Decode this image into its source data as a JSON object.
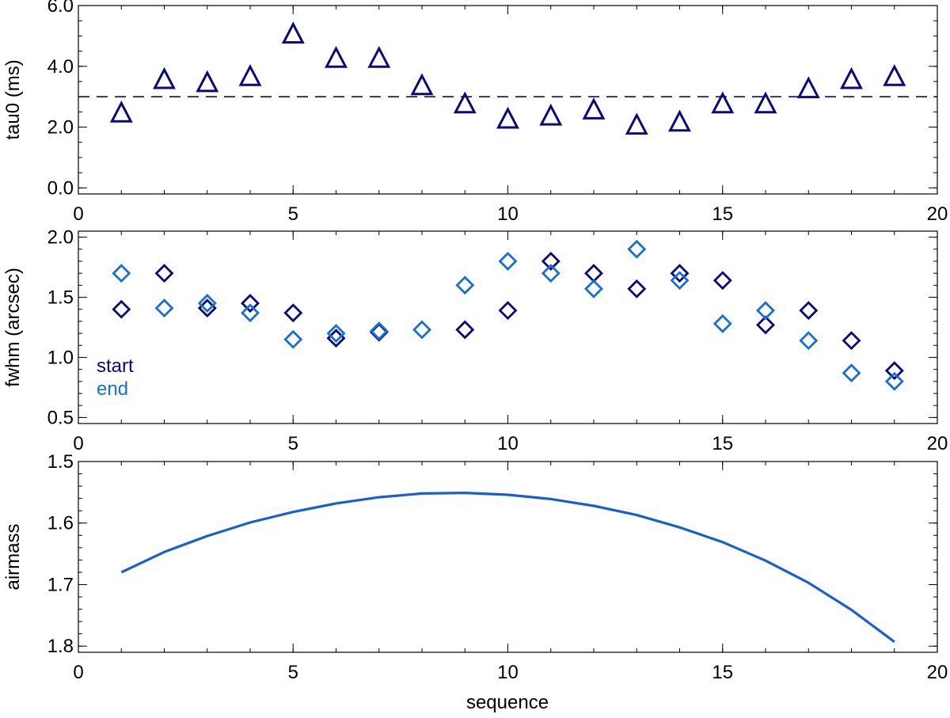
{
  "chart_data": [
    {
      "type": "scatter",
      "panel": "top",
      "xlabel": "",
      "ylabel": "tau0 (ms)",
      "xlim": [
        0,
        20
      ],
      "ylim": [
        -0.2,
        6.0
      ],
      "xticks": [
        0,
        5,
        10,
        15,
        20
      ],
      "xtick_labels": [
        "0",
        "5",
        "10",
        "15",
        "20"
      ],
      "yticks": [
        0,
        2,
        4,
        6
      ],
      "ytick_labels": [
        "0.0",
        "2.0",
        "4.0",
        "6.0"
      ],
      "x_minor_step": 1,
      "y_minor_step": 0.5,
      "marker": "triangle",
      "series": [
        {
          "color": "#0a0a7a",
          "x": [
            1,
            2,
            3,
            4,
            5,
            6,
            7,
            8,
            9,
            10,
            11,
            12,
            13,
            14,
            15,
            16,
            17,
            18,
            19
          ],
          "y": [
            2.45,
            3.55,
            3.45,
            3.65,
            5.05,
            4.25,
            4.25,
            3.35,
            2.75,
            2.25,
            2.35,
            2.55,
            2.05,
            2.15,
            2.75,
            2.75,
            3.25,
            3.55,
            3.65
          ]
        }
      ],
      "hline": {
        "y": 3.0,
        "style": "dashed",
        "color": "#0a0a7a"
      }
    },
    {
      "type": "scatter",
      "panel": "middle",
      "xlabel": "",
      "ylabel": "fwhm (arcsec)",
      "xlim": [
        0,
        20
      ],
      "ylim": [
        0.45,
        2.05
      ],
      "xticks": [
        0,
        5,
        10,
        15,
        20
      ],
      "xtick_labels": [
        "0",
        "5",
        "10",
        "15",
        "20"
      ],
      "yticks": [
        0.5,
        1.0,
        1.5,
        2.0
      ],
      "ytick_labels": [
        "0.5",
        "1.0",
        "1.5",
        "2.0"
      ],
      "x_minor_step": 1,
      "y_minor_step": 0.1,
      "marker": "diamond",
      "legend_position": "left",
      "series": [
        {
          "name": "start",
          "color": "#0a0a7a",
          "x": [
            1,
            2,
            3,
            4,
            5,
            6,
            7,
            9,
            10,
            11,
            12,
            13,
            14,
            15,
            16,
            17,
            18,
            19
          ],
          "y": [
            1.4,
            1.7,
            1.41,
            1.45,
            1.37,
            1.16,
            1.21,
            1.23,
            1.39,
            1.8,
            1.7,
            1.57,
            1.7,
            1.64,
            1.27,
            1.39,
            1.14,
            0.89
          ]
        },
        {
          "name": "end",
          "color": "#1a6fd4",
          "x": [
            1,
            2,
            3,
            4,
            5,
            6,
            7,
            8,
            9,
            10,
            11,
            12,
            13,
            14,
            15,
            16,
            17,
            18,
            19
          ],
          "y": [
            1.7,
            1.41,
            1.45,
            1.37,
            1.15,
            1.2,
            1.22,
            1.23,
            1.6,
            1.8,
            1.7,
            1.57,
            1.9,
            1.64,
            1.28,
            1.39,
            1.14,
            0.87,
            0.8
          ]
        }
      ]
    },
    {
      "type": "line",
      "panel": "bottom",
      "xlabel": "sequence",
      "ylabel": "airmass",
      "xlim": [
        0,
        20
      ],
      "ylim": [
        1.5,
        1.81
      ],
      "y_inverted": true,
      "xticks": [
        0,
        5,
        10,
        15,
        20
      ],
      "xtick_labels": [
        "0",
        "5",
        "10",
        "15",
        "20"
      ],
      "yticks": [
        1.5,
        1.6,
        1.7,
        1.8
      ],
      "ytick_labels": [
        "1.5",
        "1.6",
        "1.7",
        "1.8"
      ],
      "x_minor_step": 1,
      "y_minor_step": 0.02,
      "series": [
        {
          "color": "#1a5fd0",
          "x": [
            1,
            2,
            3,
            4,
            5,
            6,
            7,
            8,
            9,
            10,
            11,
            12,
            13,
            14,
            15,
            16,
            17,
            18,
            19
          ],
          "y": [
            1.68,
            1.647,
            1.621,
            1.599,
            1.582,
            1.568,
            1.558,
            1.552,
            1.551,
            1.554,
            1.561,
            1.572,
            1.587,
            1.607,
            1.631,
            1.661,
            1.697,
            1.741,
            1.793
          ]
        }
      ]
    }
  ]
}
